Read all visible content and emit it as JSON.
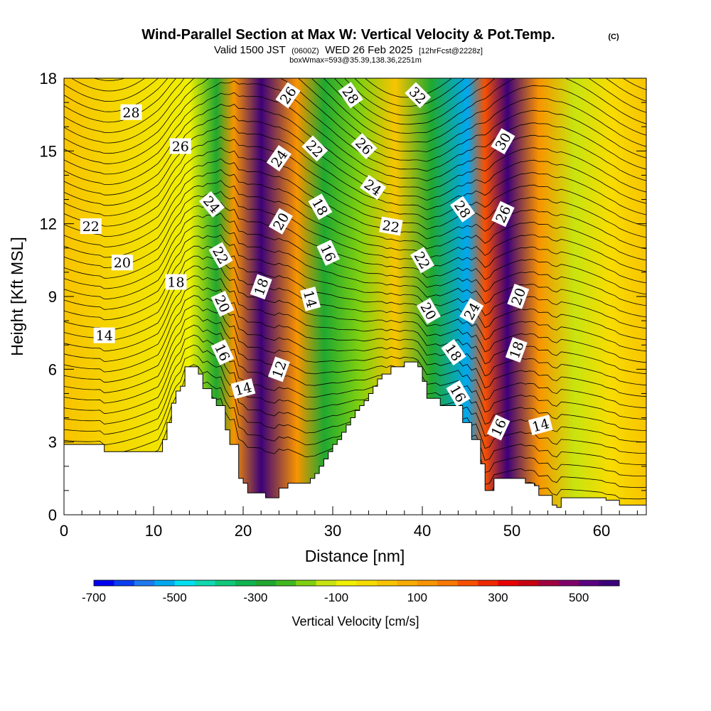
{
  "title": "Wind-Parallel Section at Max W: Vertical Velocity & Pot.Temp.",
  "copyright": "(C)",
  "subtitle_main": "Valid 1500 JST",
  "subtitle_utc": "(0600Z)",
  "subtitle_date": "WED 26 Feb 2025",
  "subtitle_fcst": "[12hrFcst@2228z]",
  "subtitle_box": "boxWmax=593@35.39,138.36,2251m",
  "chart_data": {
    "type": "heatmap",
    "xlabel": "Distance [nm]",
    "ylabel": "Height [Kft MSL]",
    "xlim": [
      0,
      65
    ],
    "ylim": [
      0,
      18
    ],
    "x_ticks": [
      0,
      10,
      20,
      30,
      40,
      50,
      60
    ],
    "y_ticks": [
      0,
      3,
      6,
      9,
      12,
      15,
      18
    ],
    "x_tick_labels": [
      "0",
      "10",
      "20",
      "30",
      "40",
      "50",
      "60"
    ],
    "y_tick_labels": [
      "0",
      "3",
      "6",
      "9",
      "12",
      "15",
      "18"
    ],
    "colorbar": {
      "label": "Vertical Velocity [cm/s]",
      "ticks": [
        "-700",
        "-500",
        "-300",
        "-100",
        "100",
        "300",
        "500"
      ],
      "tick_values": [
        -700,
        -500,
        -300,
        -100,
        100,
        300,
        500
      ],
      "range": [
        -700,
        600
      ],
      "colors": [
        "#0000f0",
        "#0a3cf0",
        "#1e78f0",
        "#00a8f0",
        "#00e0f0",
        "#10d8b0",
        "#10c87a",
        "#10b450",
        "#20a830",
        "#40b820",
        "#80d010",
        "#c8e410",
        "#f0f000",
        "#f8dc00",
        "#f8c400",
        "#f8ac00",
        "#f89400",
        "#f87800",
        "#f85000",
        "#f02800",
        "#e80000",
        "#c80010",
        "#a00040",
        "#80006a",
        "#5a0080",
        "#3c007a"
      ]
    },
    "velocity_bands": [
      {
        "x": 0,
        "w": 0
      },
      {
        "x": 14,
        "w": -100
      },
      {
        "x": 17,
        "w": -300
      },
      {
        "x": 19,
        "w": 100
      },
      {
        "x": 22,
        "w": 550
      },
      {
        "x": 26,
        "w": 100
      },
      {
        "x": 29,
        "w": -300
      },
      {
        "x": 33,
        "w": -200
      },
      {
        "x": 37,
        "w": 0
      },
      {
        "x": 41,
        "w": -300
      },
      {
        "x": 45,
        "w": -550
      },
      {
        "x": 47,
        "w": 200
      },
      {
        "x": 49.5,
        "w": 550
      },
      {
        "x": 53,
        "w": 100
      },
      {
        "x": 57,
        "w": -150
      },
      {
        "x": 61,
        "w": -50
      },
      {
        "x": 65,
        "w": 0
      }
    ],
    "terrain": [
      [
        0,
        2.9
      ],
      [
        4,
        2.9
      ],
      [
        4.5,
        2.6
      ],
      [
        9,
        2.6
      ],
      [
        9.5,
        2.6
      ],
      [
        10,
        2.6
      ],
      [
        10.5,
        2.6
      ],
      [
        11,
        3.1
      ],
      [
        11.5,
        3.8
      ],
      [
        12,
        4.6
      ],
      [
        12.5,
        5.1
      ],
      [
        13,
        5.3
      ],
      [
        13.5,
        6.1
      ],
      [
        14.5,
        6.1
      ],
      [
        15,
        5.8
      ],
      [
        15.5,
        5.2
      ],
      [
        16,
        5.2
      ],
      [
        16.5,
        4.8
      ],
      [
        17,
        4.5
      ],
      [
        17.5,
        4.5
      ],
      [
        18,
        3.5
      ],
      [
        18.5,
        2.9
      ],
      [
        19,
        2.9
      ],
      [
        19.5,
        1.5
      ],
      [
        20,
        1.3
      ],
      [
        20.5,
        0.9
      ],
      [
        21,
        0.9
      ],
      [
        21.5,
        0.9
      ],
      [
        22,
        0.9
      ],
      [
        22.5,
        0.7
      ],
      [
        23.5,
        0.7
      ],
      [
        24,
        1.1
      ],
      [
        25,
        1.3
      ],
      [
        26,
        1.3
      ],
      [
        27,
        1.3
      ],
      [
        27.5,
        1.5
      ],
      [
        28,
        1.7
      ],
      [
        28.5,
        2.0
      ],
      [
        29,
        2.3
      ],
      [
        29.5,
        2.6
      ],
      [
        30,
        2.9
      ],
      [
        30.5,
        3.1
      ],
      [
        31,
        3.4
      ],
      [
        31.5,
        3.7
      ],
      [
        32,
        4.0
      ],
      [
        32.5,
        4.3
      ],
      [
        33,
        4.5
      ],
      [
        33.5,
        4.7
      ],
      [
        34,
        5.0
      ],
      [
        34.5,
        5.3
      ],
      [
        35,
        5.6
      ],
      [
        35.5,
        5.8
      ],
      [
        36,
        5.8
      ],
      [
        36.5,
        6.1
      ],
      [
        38,
        6.3
      ],
      [
        38.5,
        6.3
      ],
      [
        39.5,
        6.1
      ],
      [
        40,
        5.5
      ],
      [
        40.5,
        4.8
      ],
      [
        41,
        4.8
      ],
      [
        42,
        4.5
      ],
      [
        44,
        4.5
      ],
      [
        44.5,
        3.8
      ],
      [
        45,
        3.8
      ],
      [
        45.5,
        3.1
      ],
      [
        46,
        3.1
      ],
      [
        46.5,
        2.1
      ],
      [
        47,
        1.0
      ],
      [
        47.5,
        1.0
      ],
      [
        48,
        1.5
      ],
      [
        49,
        1.5
      ],
      [
        49.5,
        1.5
      ],
      [
        50,
        1.5
      ],
      [
        51,
        1.5
      ],
      [
        51.5,
        1.3
      ],
      [
        52,
        1.3
      ],
      [
        52.5,
        1.2
      ],
      [
        53,
        0.8
      ],
      [
        54,
        0.8
      ],
      [
        54.5,
        0.4
      ],
      [
        55,
        0.3
      ],
      [
        55.5,
        0.7
      ],
      [
        60,
        0.7
      ],
      [
        60.5,
        0.6
      ],
      [
        61.5,
        0.6
      ],
      [
        62,
        0.4
      ],
      [
        65,
        0.4
      ]
    ],
    "isentrope_labels": [
      {
        "text": "28",
        "x": 7.5,
        "y": 16.6,
        "angle": 0
      },
      {
        "text": "26",
        "x": 13,
        "y": 15.2,
        "angle": 0
      },
      {
        "text": "24",
        "x": 16.5,
        "y": 12.8,
        "angle": 50
      },
      {
        "text": "22",
        "x": 3,
        "y": 11.9,
        "angle": 0
      },
      {
        "text": "22",
        "x": 17.5,
        "y": 10.7,
        "angle": 60
      },
      {
        "text": "20",
        "x": 6.5,
        "y": 10.4,
        "angle": 0
      },
      {
        "text": "20",
        "x": 17.7,
        "y": 8.7,
        "angle": 65
      },
      {
        "text": "18",
        "x": 12.5,
        "y": 9.6,
        "angle": 0
      },
      {
        "text": "16",
        "x": 17.7,
        "y": 6.7,
        "angle": 65
      },
      {
        "text": "14",
        "x": 4.5,
        "y": 7.4,
        "angle": 0
      },
      {
        "text": "14",
        "x": 20,
        "y": 5.2,
        "angle": -15
      },
      {
        "text": "26",
        "x": 25,
        "y": 17.3,
        "angle": -55
      },
      {
        "text": "24",
        "x": 24,
        "y": 14.7,
        "angle": -55
      },
      {
        "text": "20",
        "x": 24.2,
        "y": 12.1,
        "angle": -60
      },
      {
        "text": "18",
        "x": 22,
        "y": 9.4,
        "angle": -70
      },
      {
        "text": "12",
        "x": 24,
        "y": 6.0,
        "angle": -70
      },
      {
        "text": "28",
        "x": 32,
        "y": 17.3,
        "angle": 55
      },
      {
        "text": "22",
        "x": 28,
        "y": 15.1,
        "angle": 45
      },
      {
        "text": "26",
        "x": 33.5,
        "y": 15.2,
        "angle": 45
      },
      {
        "text": "24",
        "x": 34.5,
        "y": 13.5,
        "angle": 35
      },
      {
        "text": "18",
        "x": 28.6,
        "y": 12.7,
        "angle": 60
      },
      {
        "text": "16",
        "x": 29.5,
        "y": 10.8,
        "angle": 65
      },
      {
        "text": "14",
        "x": 27.5,
        "y": 8.9,
        "angle": 75
      },
      {
        "text": "32",
        "x": 39.5,
        "y": 17.3,
        "angle": 45
      },
      {
        "text": "22",
        "x": 36.5,
        "y": 11.9,
        "angle": 10
      },
      {
        "text": "22",
        "x": 40,
        "y": 10.5,
        "angle": 60
      },
      {
        "text": "20",
        "x": 40.7,
        "y": 8.4,
        "angle": 60
      },
      {
        "text": "18",
        "x": 43.5,
        "y": 6.7,
        "angle": 55
      },
      {
        "text": "16",
        "x": 44,
        "y": 5.0,
        "angle": 60
      },
      {
        "text": "28",
        "x": 44.5,
        "y": 12.6,
        "angle": 55
      },
      {
        "text": "24",
        "x": 45.5,
        "y": 8.4,
        "angle": -60
      },
      {
        "text": "30",
        "x": 49,
        "y": 15.4,
        "angle": -60
      },
      {
        "text": "26",
        "x": 49,
        "y": 12.4,
        "angle": -65
      },
      {
        "text": "20",
        "x": 50.7,
        "y": 9.0,
        "angle": -70
      },
      {
        "text": "18",
        "x": 50.5,
        "y": 6.8,
        "angle": -70
      },
      {
        "text": "16",
        "x": 48.5,
        "y": 3.6,
        "angle": -65
      },
      {
        "text": "14",
        "x": 53.2,
        "y": 3.7,
        "angle": -15
      }
    ]
  }
}
